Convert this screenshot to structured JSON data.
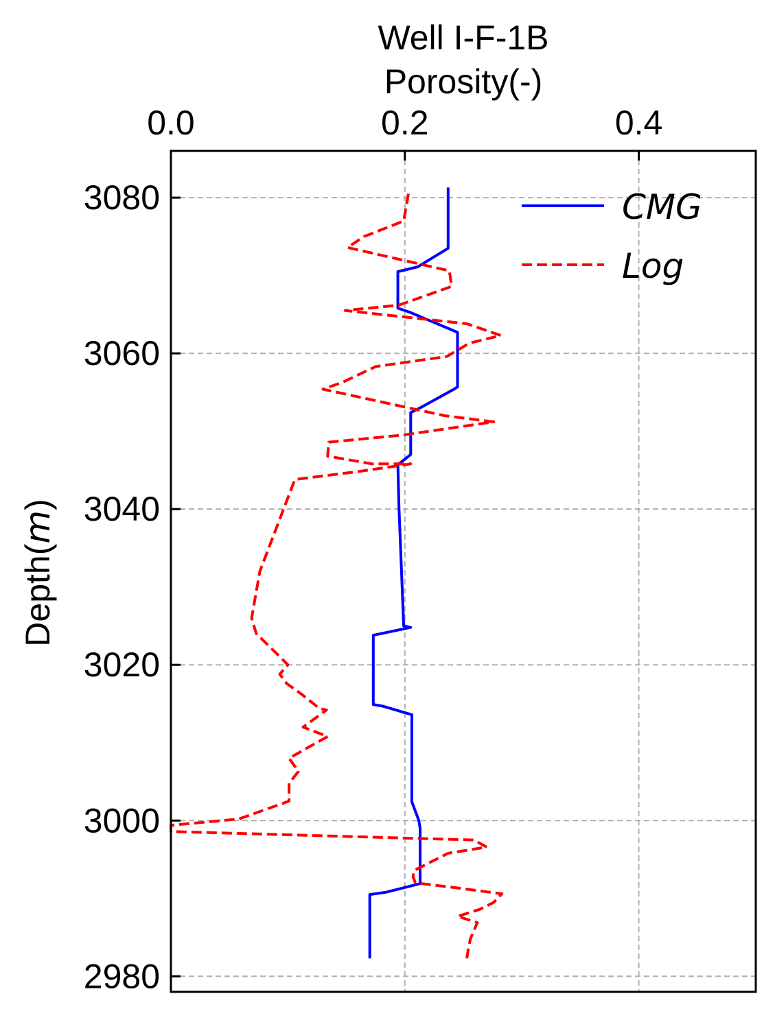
{
  "chart_data": {
    "type": "line",
    "title": "Well I-F-1B",
    "xlabel": "Porosity(-)",
    "ylabel_prefix": "Depth(",
    "ylabel_unit": "m",
    "ylabel_suffix": ")",
    "xlim": [
      0.0,
      0.5
    ],
    "ylim": [
      2978,
      3086
    ],
    "x_ticks": [
      0.0,
      0.2,
      0.4
    ],
    "x_tick_labels": [
      "0.0",
      "0.2",
      "0.4"
    ],
    "y_ticks": [
      2980,
      3000,
      3020,
      3040,
      3060,
      3080
    ],
    "y_tick_labels": [
      "2980",
      "3000",
      "3020",
      "3040",
      "3060",
      "3080"
    ],
    "x_axis_position": "top",
    "y_inverted": true,
    "grid": true,
    "legend_position": "top-right",
    "series": [
      {
        "name": "CMG",
        "color": "#0000ff",
        "style": "solid",
        "points": [
          [
            0.237,
            3081.3
          ],
          [
            0.237,
            3073.5
          ],
          [
            0.211,
            3071.1
          ],
          [
            0.194,
            3070.5
          ],
          [
            0.194,
            3065.8
          ],
          [
            0.204,
            3065.3
          ],
          [
            0.245,
            3062.7
          ],
          [
            0.245,
            3055.7
          ],
          [
            0.242,
            3055.4
          ],
          [
            0.213,
            3053.0
          ],
          [
            0.205,
            3052.4
          ],
          [
            0.205,
            3047.0
          ],
          [
            0.194,
            3045.7
          ],
          [
            0.195,
            3040.0
          ],
          [
            0.199,
            3025.0
          ],
          [
            0.205,
            3024.8
          ],
          [
            0.173,
            3023.8
          ],
          [
            0.173,
            3014.9
          ],
          [
            0.181,
            3014.7
          ],
          [
            0.206,
            3013.6
          ],
          [
            0.206,
            3002.4
          ],
          [
            0.212,
            3000.0
          ],
          [
            0.213,
            2999.0
          ],
          [
            0.213,
            2991.9
          ],
          [
            0.184,
            2990.8
          ],
          [
            0.17,
            2990.5
          ],
          [
            0.17,
            2986.5
          ],
          [
            0.17,
            2982.3
          ]
        ]
      },
      {
        "name": "Log",
        "color": "#ff0000",
        "style": "dashed",
        "points": [
          [
            0.203,
            3080.5
          ],
          [
            0.199,
            3077.0
          ],
          [
            0.165,
            3075.0
          ],
          [
            0.151,
            3073.6
          ],
          [
            0.238,
            3070.6
          ],
          [
            0.24,
            3068.6
          ],
          [
            0.195,
            3066.2
          ],
          [
            0.149,
            3065.5
          ],
          [
            0.253,
            3063.8
          ],
          [
            0.282,
            3062.3
          ],
          [
            0.255,
            3061.3
          ],
          [
            0.236,
            3059.6
          ],
          [
            0.175,
            3058.3
          ],
          [
            0.147,
            3056.3
          ],
          [
            0.13,
            3055.4
          ],
          [
            0.234,
            3052.0
          ],
          [
            0.276,
            3051.2
          ],
          [
            0.198,
            3049.5
          ],
          [
            0.135,
            3048.6
          ],
          [
            0.134,
            3046.8
          ],
          [
            0.172,
            3045.8
          ],
          [
            0.205,
            3045.8
          ],
          [
            0.159,
            3044.8
          ],
          [
            0.106,
            3043.8
          ],
          [
            0.076,
            3032.0
          ],
          [
            0.069,
            3026.0
          ],
          [
            0.073,
            3024.0
          ],
          [
            0.09,
            3021.5
          ],
          [
            0.1,
            3020.0
          ],
          [
            0.093,
            3018.8
          ],
          [
            0.099,
            3017.6
          ],
          [
            0.112,
            3016.2
          ],
          [
            0.127,
            3014.4
          ],
          [
            0.133,
            3014.2
          ],
          [
            0.113,
            3012.0
          ],
          [
            0.134,
            3010.8
          ],
          [
            0.101,
            3008.0
          ],
          [
            0.109,
            3006.3
          ],
          [
            0.101,
            3004.8
          ],
          [
            0.101,
            3002.5
          ],
          [
            0.058,
            3000.2
          ],
          [
            0.0,
            2999.4
          ],
          [
            0.0,
            2998.6
          ],
          [
            0.259,
            2997.5
          ],
          [
            0.27,
            2996.6
          ],
          [
            0.237,
            2995.8
          ],
          [
            0.208,
            2993.6
          ],
          [
            0.207,
            2992.8
          ],
          [
            0.209,
            2992.0
          ],
          [
            0.242,
            2991.4
          ],
          [
            0.283,
            2990.6
          ],
          [
            0.276,
            2989.5
          ],
          [
            0.264,
            2988.6
          ],
          [
            0.245,
            2987.7
          ],
          [
            0.262,
            2986.9
          ],
          [
            0.256,
            2984.8
          ],
          [
            0.254,
            2983.3
          ],
          [
            0.253,
            2982.3
          ]
        ]
      }
    ]
  }
}
